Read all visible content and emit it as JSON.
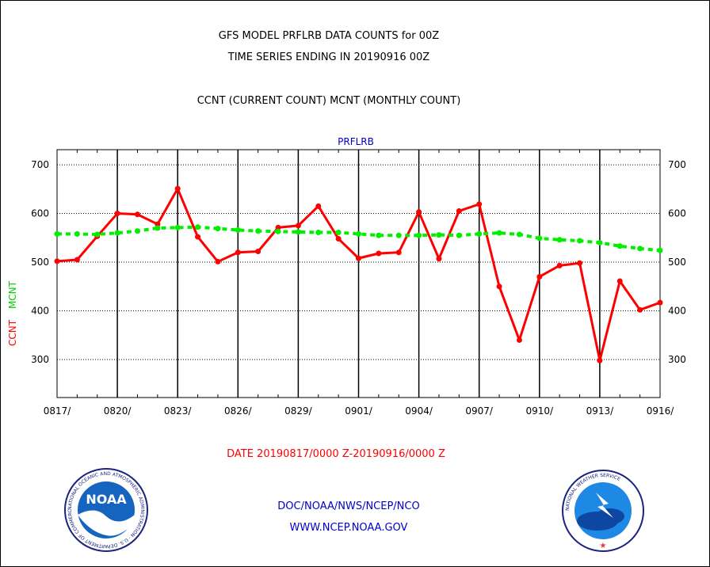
{
  "header": {
    "line1": "GFS MODEL PRFLRB DATA COUNTS for 00Z",
    "line2": "TIME SERIES ENDING IN 20190916 00Z",
    "line3": "CCNT (CURRENT COUNT) MCNT (MONTHLY COUNT)"
  },
  "chart_data": {
    "type": "line",
    "title": "PRFLRB",
    "ylabel_current": "CCNT",
    "ylabel_monthly": "MCNT",
    "xlabel": "DATE 20190817/0000 Z-20190916/0000 Z",
    "x_tick_labels": [
      "0817/",
      "0820/",
      "0823/",
      "0826/",
      "0829/",
      "0901/",
      "0904/",
      "0907/",
      "0910/",
      "0913/",
      "0916/"
    ],
    "y_tick_labels": [
      "300",
      "400",
      "500",
      "600",
      "700"
    ],
    "ylim": [
      222,
      731
    ],
    "xlim": [
      0,
      30
    ],
    "grid": true,
    "series": [
      {
        "name": "CCNT",
        "color": "#ff0000",
        "x": [
          0,
          1,
          2,
          3,
          4,
          5,
          6,
          7,
          8,
          9,
          10,
          11,
          12,
          13,
          14,
          15,
          16,
          17,
          18,
          19,
          20,
          21,
          22,
          23,
          24,
          25,
          26,
          27,
          28,
          29,
          30
        ],
        "values": [
          502,
          505,
          553,
          600,
          598,
          578,
          651,
          552,
          501,
          520,
          522,
          571,
          575,
          615,
          548,
          508,
          518,
          520,
          603,
          507,
          605,
          619,
          450,
          340,
          470,
          493,
          498,
          298,
          461,
          402,
          417
        ]
      },
      {
        "name": "MCNT",
        "color": "#00ee00",
        "x": [
          0,
          1,
          2,
          3,
          4,
          5,
          6,
          7,
          8,
          9,
          10,
          11,
          12,
          13,
          14,
          15,
          16,
          17,
          18,
          19,
          20,
          21,
          22,
          23,
          24,
          25,
          26,
          27,
          28,
          29,
          30
        ],
        "values": [
          558,
          558,
          557,
          560,
          564,
          570,
          571,
          572,
          569,
          566,
          564,
          563,
          562,
          561,
          561,
          558,
          555,
          555,
          555,
          556,
          555,
          558,
          560,
          557,
          549,
          546,
          544,
          540,
          533,
          528,
          524
        ]
      }
    ]
  },
  "footer": {
    "date_range": "DATE 20190817/0000 Z-20190916/0000 Z",
    "org": "DOC/NOAA/NWS/NCEP/NCO",
    "url": "WWW.NCEP.NOAA.GOV"
  },
  "logos": {
    "left": "noaa-logo",
    "left_text": "NOAA",
    "left_ring": "NATIONAL OCEANIC AND ATMOSPHERIC ADMINISTRATION · U.S. DEPARTMENT OF COMMERCE",
    "right": "nws-logo",
    "right_ring": "NATIONAL WEATHER SERVICE"
  }
}
